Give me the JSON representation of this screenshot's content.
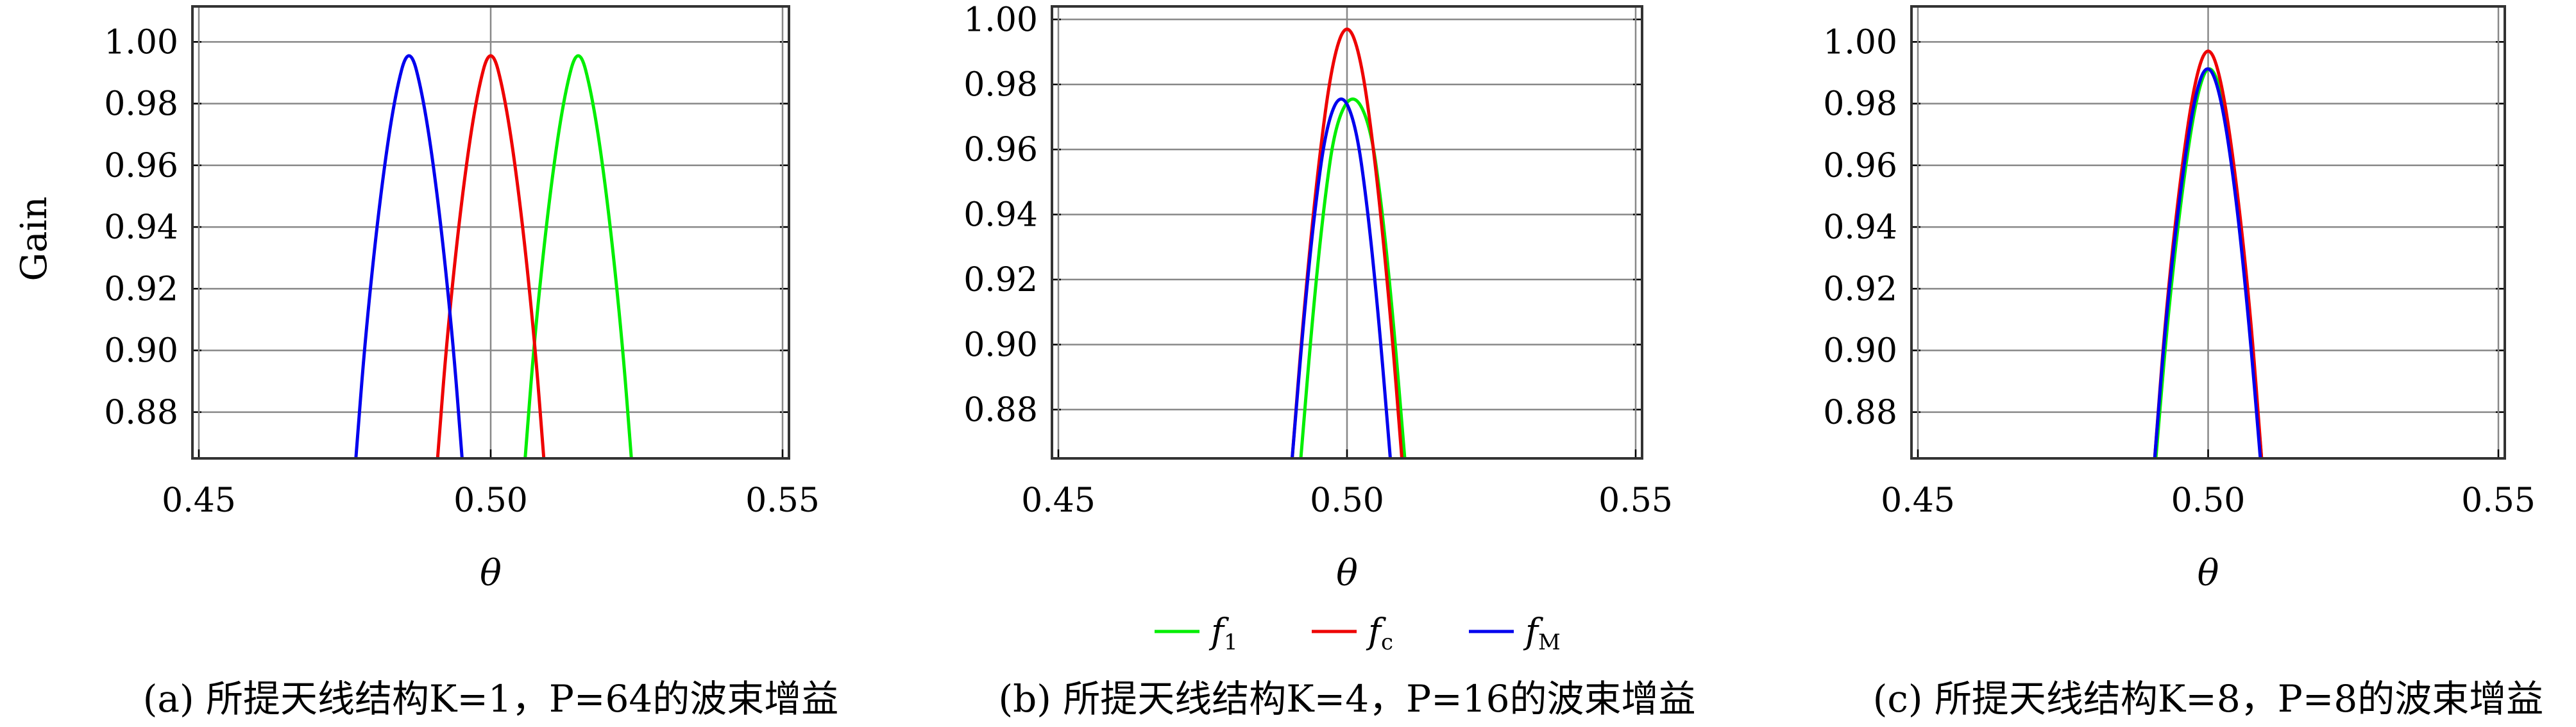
{
  "chart_data": [
    {
      "type": "line",
      "ylabel": "Gain",
      "xlabel": "θ",
      "xlim": [
        0.45,
        0.55
      ],
      "ylim": [
        0.865,
        1.0115
      ],
      "x_ticks": [
        "0.45",
        "0.50",
        "0.55"
      ],
      "y_ticks": [
        "0.88",
        "0.90",
        "0.92",
        "0.94",
        "0.96",
        "0.98",
        "1.00"
      ],
      "grid": true,
      "caption": "(a) 所提天线结构K=1，P=64的波束增益",
      "series": [
        {
          "name": "f1",
          "color": "#00ee00",
          "x": [
            0.5059,
            0.5075,
            0.51,
            0.5125,
            0.515,
            0.5175,
            0.52,
            0.5225,
            0.5241
          ],
          "y": [
            0.865,
            0.904,
            0.949,
            0.982,
            1.0,
            0.982,
            0.949,
            0.904,
            0.865
          ]
        },
        {
          "name": "fc",
          "color": "#ee0000",
          "x": [
            0.4909,
            0.4925,
            0.495,
            0.4975,
            0.5,
            0.5025,
            0.505,
            0.5075,
            0.5091
          ],
          "y": [
            0.865,
            0.904,
            0.949,
            0.982,
            1.0,
            0.982,
            0.949,
            0.904,
            0.865
          ]
        },
        {
          "name": "fM",
          "color": "#0000ee",
          "x": [
            0.4769,
            0.4785,
            0.481,
            0.4835,
            0.486,
            0.4885,
            0.491,
            0.4935,
            0.4951
          ],
          "y": [
            0.865,
            0.904,
            0.949,
            0.982,
            1.0,
            0.982,
            0.949,
            0.904,
            0.865
          ]
        }
      ]
    },
    {
      "type": "line",
      "xlabel": "θ",
      "xlim": [
        0.45,
        0.55
      ],
      "ylim": [
        0.865,
        1.004
      ],
      "x_ticks": [
        "0.45",
        "0.50",
        "0.55"
      ],
      "y_ticks": [
        "0.88",
        "0.90",
        "0.92",
        "0.94",
        "0.96",
        "0.98",
        "1.00"
      ],
      "grid": true,
      "caption": "(b) 所提天线结构K=4，P=16的波束增益",
      "series": [
        {
          "name": "f1",
          "color": "#00ee00",
          "x": [
            0.492,
            0.494,
            0.496,
            0.498,
            0.501,
            0.504,
            0.506,
            0.508,
            0.51
          ],
          "y": [
            0.865,
            0.908,
            0.943,
            0.968,
            0.978,
            0.968,
            0.943,
            0.908,
            0.865
          ]
        },
        {
          "name": "fc",
          "color": "#ee0000",
          "x": [
            0.4905,
            0.4925,
            0.495,
            0.4975,
            0.5,
            0.5025,
            0.505,
            0.5075,
            0.5095
          ],
          "y": [
            0.865,
            0.91,
            0.955,
            0.988,
            1.0,
            0.988,
            0.955,
            0.91,
            0.865
          ]
        },
        {
          "name": "fM",
          "color": "#0000ee",
          "x": [
            0.4905,
            0.4925,
            0.4945,
            0.4965,
            0.499,
            0.5015,
            0.5035,
            0.5055,
            0.5075
          ],
          "y": [
            0.865,
            0.908,
            0.943,
            0.968,
            0.978,
            0.968,
            0.943,
            0.908,
            0.865
          ]
        }
      ]
    },
    {
      "type": "line",
      "xlabel": "θ",
      "xlim": [
        0.45,
        0.55
      ],
      "ylim": [
        0.865,
        1.0115
      ],
      "x_ticks": [
        "0.45",
        "0.50",
        "0.55"
      ],
      "y_ticks": [
        "0.88",
        "0.90",
        "0.92",
        "0.94",
        "0.96",
        "0.98",
        "1.00"
      ],
      "grid": true,
      "caption": "(c) 所提天线结构K=8，P=8的波束增益",
      "series": [
        {
          "name": "f1",
          "color": "#00ee00",
          "x": [
            0.491,
            0.493,
            0.4955,
            0.498,
            0.5002,
            0.5025,
            0.505,
            0.5072,
            0.5092
          ],
          "y": [
            0.865,
            0.91,
            0.952,
            0.983,
            0.994,
            0.983,
            0.952,
            0.91,
            0.865
          ]
        },
        {
          "name": "fc",
          "color": "#ee0000",
          "x": [
            0.4908,
            0.4927,
            0.4952,
            0.4977,
            0.5,
            0.5023,
            0.5048,
            0.5073,
            0.5092
          ],
          "y": [
            0.865,
            0.912,
            0.956,
            0.988,
            1.0,
            0.988,
            0.956,
            0.912,
            0.865
          ]
        },
        {
          "name": "fM",
          "color": "#0000ee",
          "x": [
            0.4908,
            0.4927,
            0.4952,
            0.4977,
            0.4999,
            0.5022,
            0.5047,
            0.507,
            0.509
          ],
          "y": [
            0.865,
            0.91,
            0.952,
            0.983,
            0.994,
            0.983,
            0.952,
            0.91,
            0.865
          ]
        }
      ]
    }
  ],
  "legend": [
    {
      "letter": "f",
      "sub": "1",
      "color": "#00ee00"
    },
    {
      "letter": "f",
      "sub": "c",
      "color": "#ee0000"
    },
    {
      "letter": "f",
      "sub": "M",
      "color": "#0000ee"
    }
  ]
}
